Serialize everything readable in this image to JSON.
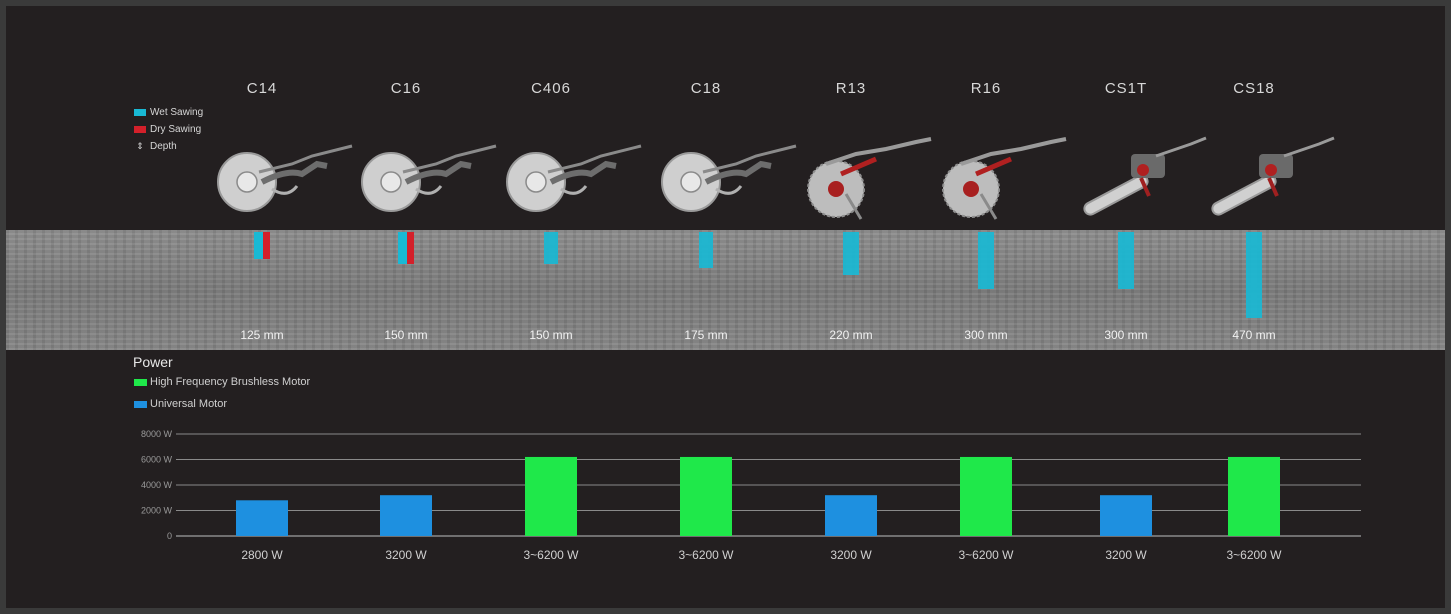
{
  "models": [
    "C14",
    "C16",
    "C406",
    "C18",
    "R13",
    "R16",
    "CS1T",
    "CS18"
  ],
  "top_legend": {
    "wet": {
      "label": "Wet Sawing",
      "color": "#19b9d4"
    },
    "dry": {
      "label": "Dry Sawing",
      "color": "#d4202a"
    },
    "depth": {
      "label": "Depth",
      "icon": "depth-icon"
    }
  },
  "depths": {
    "labels": [
      "125 mm",
      "150 mm",
      "150 mm",
      "175 mm",
      "220 mm",
      "300 mm",
      "300 mm",
      "470 mm"
    ],
    "values_mm": [
      125,
      150,
      150,
      175,
      220,
      300,
      300,
      470
    ],
    "modes": [
      "wet+dry",
      "wet+dry",
      "wet",
      "wet",
      "wet",
      "wet",
      "wet",
      "wet"
    ]
  },
  "tools": [
    "ring-saw-icon",
    "ring-saw-icon",
    "ring-saw-icon",
    "ring-saw-icon",
    "wall-saw-icon",
    "wall-saw-icon",
    "chain-saw-icon",
    "chain-saw-icon"
  ],
  "power": {
    "title": "Power",
    "legend": [
      {
        "label": "High Frequency Brushless Motor",
        "color": "#1fe84a"
      },
      {
        "label": "Universal Motor",
        "color": "#1e90e0"
      }
    ]
  },
  "chart_data": {
    "type": "bar",
    "categories": [
      "C14",
      "C16",
      "C406",
      "C18",
      "R13",
      "R16",
      "CS1T",
      "CS18"
    ],
    "values": [
      2800,
      3200,
      6200,
      6200,
      3200,
      6200,
      3200,
      6200
    ],
    "value_labels": [
      "2800 W",
      "3200 W",
      "3~6200 W",
      "3~6200 W",
      "3200 W",
      "3~6200 W",
      "3200 W",
      "3~6200 W"
    ],
    "motor_type": [
      "Universal Motor",
      "Universal Motor",
      "High Frequency Brushless Motor",
      "High Frequency Brushless Motor",
      "Universal Motor",
      "High Frequency Brushless Motor",
      "Universal Motor",
      "High Frequency Brushless Motor"
    ],
    "ylim": [
      0,
      8000
    ],
    "yticks": [
      0,
      2000,
      4000,
      6000,
      8000
    ],
    "ytick_labels": [
      "0",
      "2000 W",
      "4000 W",
      "6000 W",
      "8000 W"
    ],
    "grid": true
  }
}
